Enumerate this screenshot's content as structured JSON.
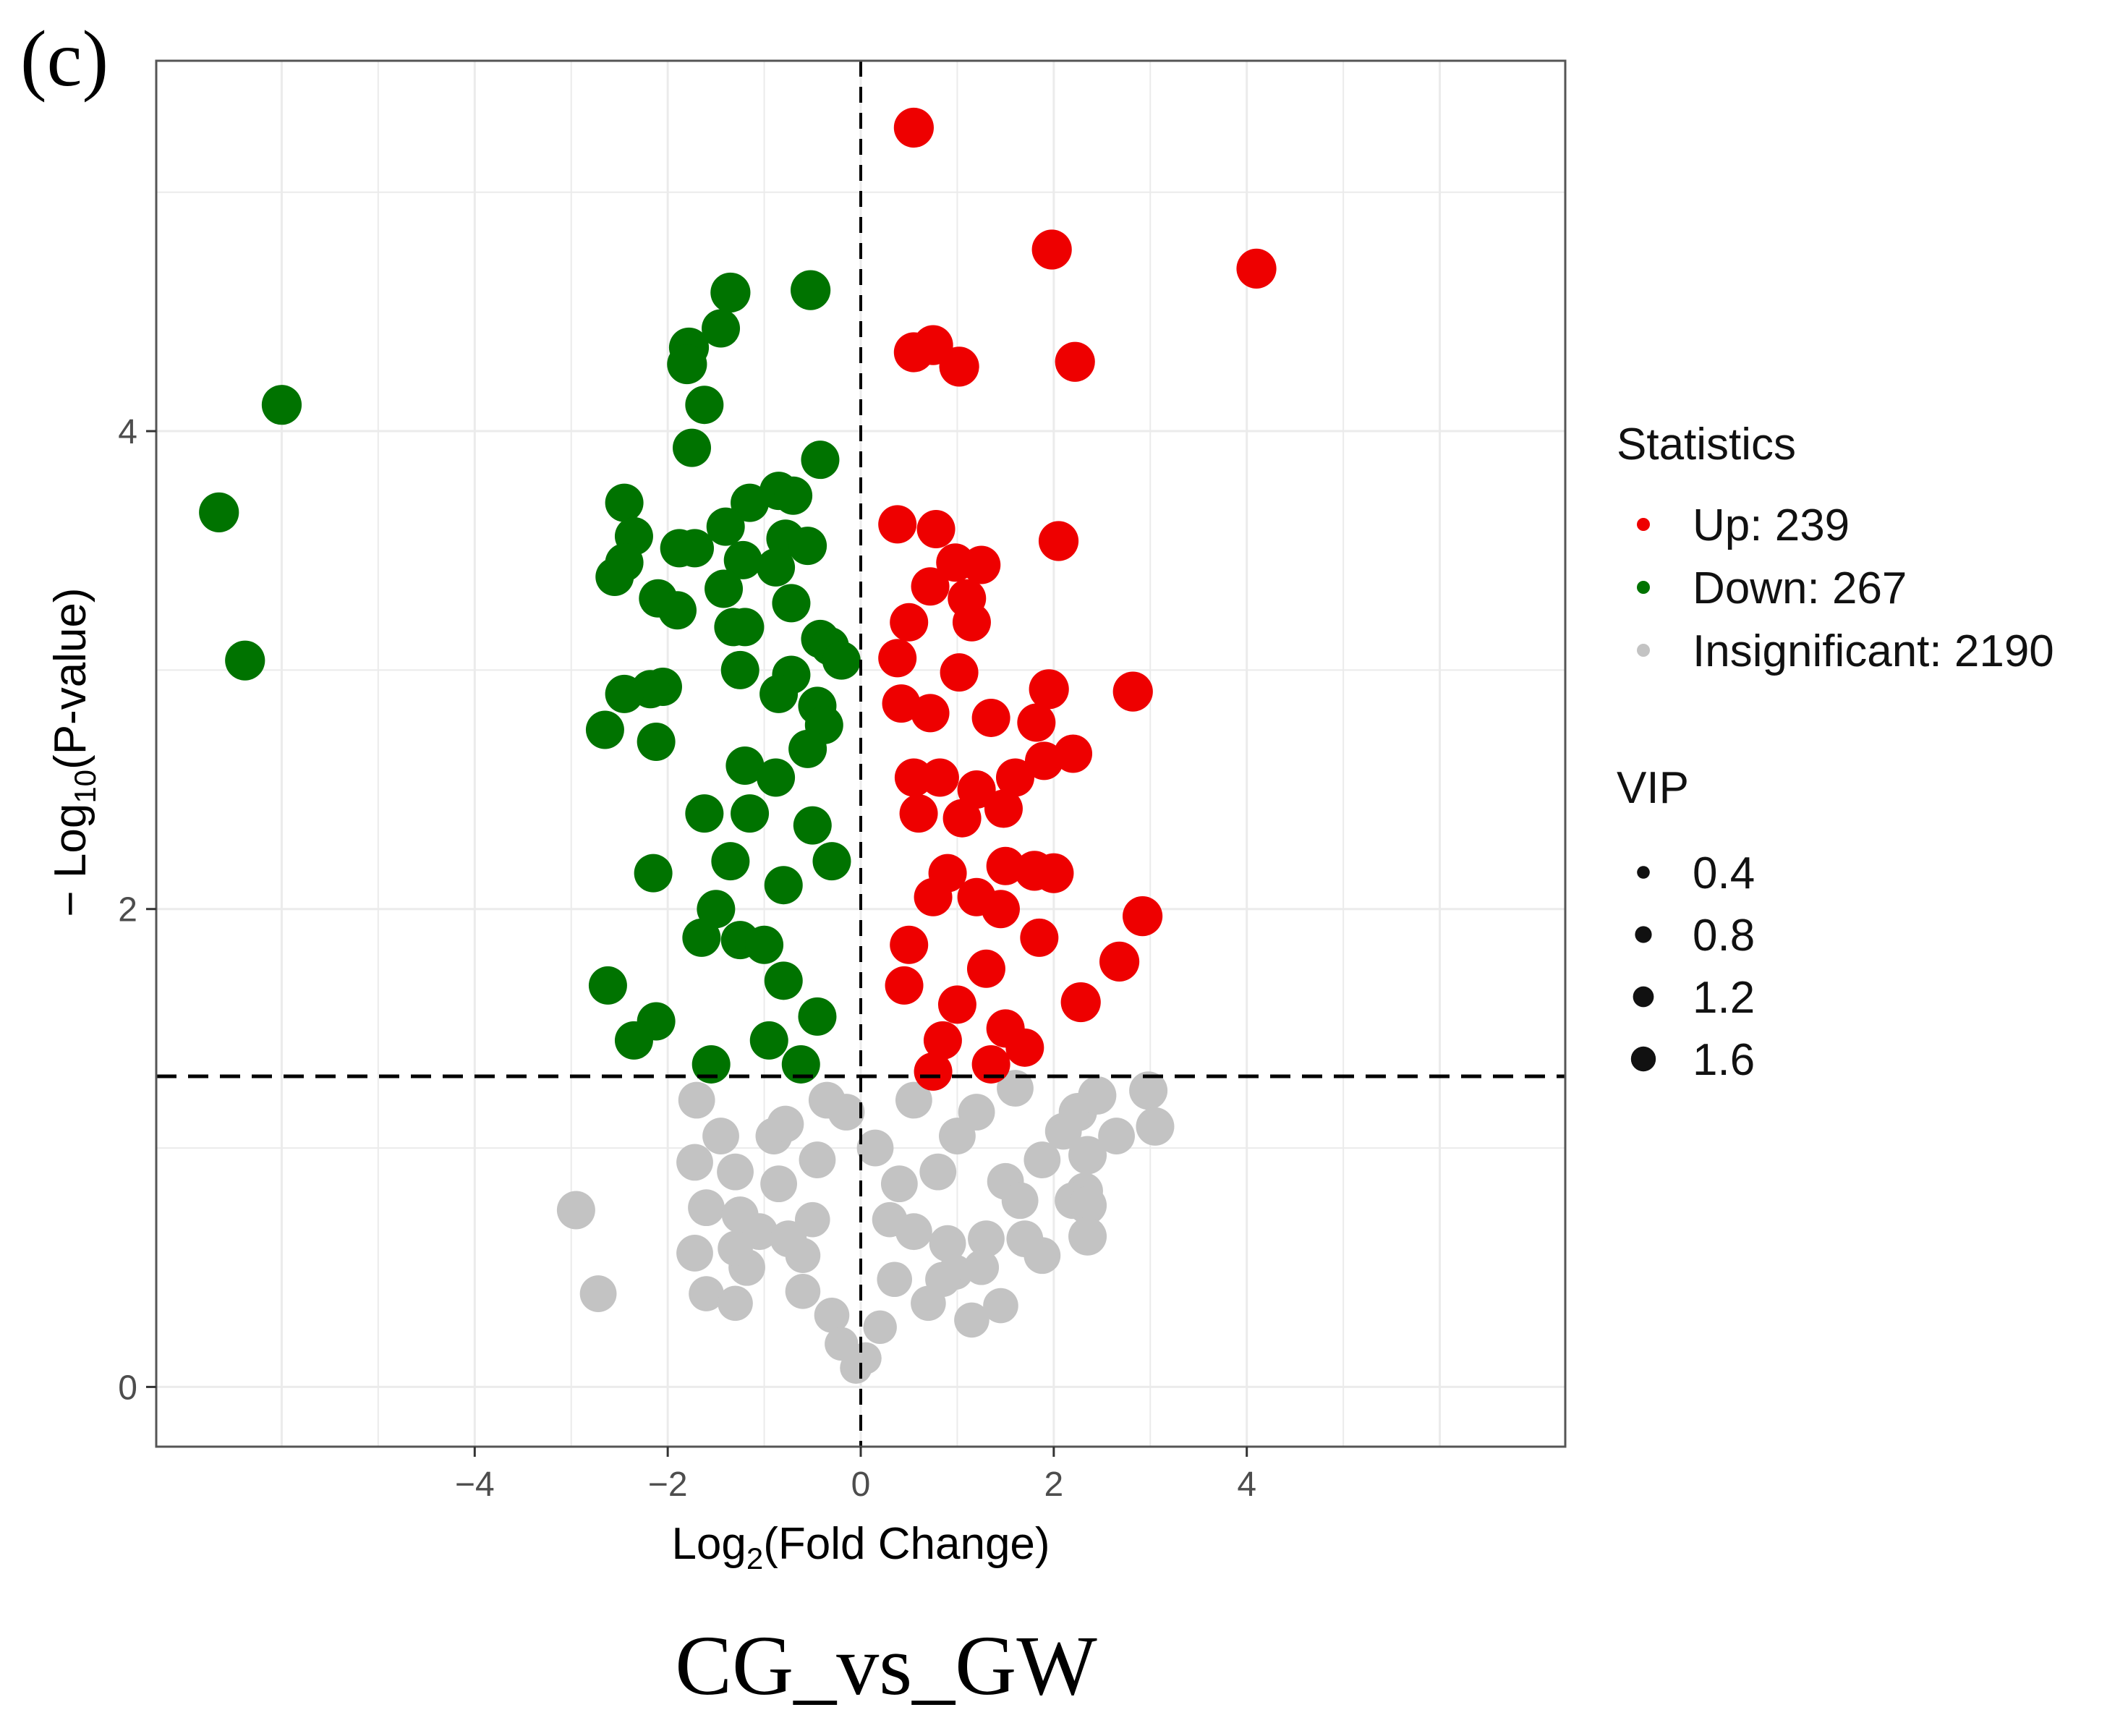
{
  "panel_label": "(c)",
  "chart_data": {
    "type": "scatter",
    "subtitle": "CG_vs_GW",
    "xlabel_pre": "Log",
    "xlabel_sub": "2",
    "xlabel_post": "(Fold Change)",
    "ylabel_pre": "− Log",
    "ylabel_sub": "10",
    "ylabel_post": "(P-value)",
    "xlim": [
      -7.3,
      7.3
    ],
    "ylim": [
      -0.25,
      5.55
    ],
    "x_ticks": [
      -4,
      -2,
      0,
      2,
      4
    ],
    "x_tick_labels": [
      "−4",
      "−2",
      "0",
      "2",
      "4"
    ],
    "y_ticks": [
      0,
      2,
      4
    ],
    "y_tick_labels": [
      "0",
      "2",
      "4"
    ],
    "grid": true,
    "vline_x": 0,
    "hline_y": 1.3,
    "colors": {
      "up": "#ee0000",
      "down": "#007300",
      "insignificant": "#c3c3c3"
    },
    "legend": {
      "statistics_title": "Statistics",
      "statistics": [
        {
          "key": "up",
          "label": "Up: 239"
        },
        {
          "key": "down",
          "label": "Down: 267"
        },
        {
          "key": "insignificant",
          "label": "Insignificant: 2190"
        }
      ],
      "vip_title": "VIP",
      "vip": [
        {
          "value": 0.4,
          "label": "0.4"
        },
        {
          "value": 0.8,
          "label": "0.8"
        },
        {
          "value": 1.2,
          "label": "1.2"
        },
        {
          "value": 1.6,
          "label": "1.6"
        }
      ]
    },
    "series": [
      {
        "name": "Up",
        "key": "up",
        "count": 239,
        "points": [
          [
            0.55,
            5.27,
            1.6
          ],
          [
            1.98,
            4.76,
            1.6
          ],
          [
            4.1,
            4.68,
            1.6
          ],
          [
            0.75,
            4.36,
            1.6
          ],
          [
            0.55,
            4.33,
            1.6
          ],
          [
            1.02,
            4.27,
            1.6
          ],
          [
            2.22,
            4.29,
            1.6
          ],
          [
            0.38,
            3.61,
            1.5
          ],
          [
            0.78,
            3.59,
            1.5
          ],
          [
            2.05,
            3.54,
            1.6
          ],
          [
            0.98,
            3.45,
            1.5
          ],
          [
            1.25,
            3.44,
            1.5
          ],
          [
            0.72,
            3.35,
            1.5
          ],
          [
            1.1,
            3.3,
            1.5
          ],
          [
            0.5,
            3.2,
            1.5
          ],
          [
            1.15,
            3.2,
            1.5
          ],
          [
            0.38,
            3.05,
            1.5
          ],
          [
            1.02,
            2.99,
            1.5
          ],
          [
            1.95,
            2.92,
            1.6
          ],
          [
            2.82,
            2.91,
            1.6
          ],
          [
            0.42,
            2.86,
            1.5
          ],
          [
            0.72,
            2.82,
            1.5
          ],
          [
            1.35,
            2.8,
            1.5
          ],
          [
            1.82,
            2.78,
            1.5
          ],
          [
            2.2,
            2.65,
            1.5
          ],
          [
            1.9,
            2.62,
            1.5
          ],
          [
            1.6,
            2.55,
            1.5
          ],
          [
            0.55,
            2.55,
            1.5
          ],
          [
            0.82,
            2.55,
            1.5
          ],
          [
            1.2,
            2.5,
            1.5
          ],
          [
            1.48,
            2.42,
            1.5
          ],
          [
            0.6,
            2.4,
            1.5
          ],
          [
            1.05,
            2.38,
            1.5
          ],
          [
            1.8,
            2.16,
            1.6
          ],
          [
            2.0,
            2.15,
            1.6
          ],
          [
            1.5,
            2.18,
            1.5
          ],
          [
            0.9,
            2.15,
            1.5
          ],
          [
            0.75,
            2.05,
            1.5
          ],
          [
            1.2,
            2.05,
            1.5
          ],
          [
            1.45,
            2.0,
            1.5
          ],
          [
            2.92,
            1.97,
            1.6
          ],
          [
            1.85,
            1.88,
            1.5
          ],
          [
            0.5,
            1.85,
            1.5
          ],
          [
            2.68,
            1.78,
            1.6
          ],
          [
            1.3,
            1.75,
            1.5
          ],
          [
            2.28,
            1.61,
            1.6
          ],
          [
            1.5,
            1.5,
            1.5
          ],
          [
            0.85,
            1.45,
            1.5
          ],
          [
            1.7,
            1.42,
            1.5
          ],
          [
            1.35,
            1.35,
            1.5
          ],
          [
            0.75,
            1.32,
            1.5
          ],
          [
            1.0,
            1.6,
            1.5
          ],
          [
            0.45,
            1.68,
            1.5
          ]
        ]
      },
      {
        "name": "Down",
        "key": "down",
        "count": 267,
        "points": [
          [
            -6.0,
            4.11,
            1.6
          ],
          [
            -6.65,
            3.66,
            1.6
          ],
          [
            -6.38,
            3.04,
            1.6
          ],
          [
            -1.35,
            4.58,
            1.6
          ],
          [
            -0.52,
            4.59,
            1.6
          ],
          [
            -1.45,
            4.43,
            1.5
          ],
          [
            -1.78,
            4.35,
            1.6
          ],
          [
            -1.8,
            4.28,
            1.6
          ],
          [
            -1.62,
            4.11,
            1.5
          ],
          [
            -1.75,
            3.93,
            1.5
          ],
          [
            -0.42,
            3.88,
            1.5
          ],
          [
            -0.85,
            3.75,
            1.5
          ],
          [
            -0.7,
            3.73,
            1.5
          ],
          [
            -1.15,
            3.7,
            1.5
          ],
          [
            -2.45,
            3.7,
            1.5
          ],
          [
            -1.4,
            3.6,
            1.5
          ],
          [
            -2.35,
            3.56,
            1.5
          ],
          [
            -0.78,
            3.55,
            1.5
          ],
          [
            -0.55,
            3.52,
            1.5
          ],
          [
            -1.88,
            3.51,
            1.5
          ],
          [
            -1.72,
            3.51,
            1.5
          ],
          [
            -1.22,
            3.46,
            1.5
          ],
          [
            -2.45,
            3.45,
            1.5
          ],
          [
            -0.88,
            3.43,
            1.5
          ],
          [
            -2.55,
            3.39,
            1.5
          ],
          [
            -1.42,
            3.34,
            1.5
          ],
          [
            -2.1,
            3.3,
            1.5
          ],
          [
            -0.72,
            3.28,
            1.5
          ],
          [
            -1.9,
            3.25,
            1.5
          ],
          [
            -1.32,
            3.18,
            1.5
          ],
          [
            -1.2,
            3.18,
            1.5
          ],
          [
            -0.42,
            3.13,
            1.5
          ],
          [
            -0.32,
            3.1,
            1.5
          ],
          [
            -0.2,
            3.04,
            1.5
          ],
          [
            -1.25,
            3.0,
            1.5
          ],
          [
            -0.72,
            2.98,
            1.5
          ],
          [
            -2.05,
            2.93,
            1.5
          ],
          [
            -2.18,
            2.92,
            1.5
          ],
          [
            -2.45,
            2.9,
            1.5
          ],
          [
            -0.85,
            2.9,
            1.5
          ],
          [
            -0.45,
            2.85,
            1.5
          ],
          [
            -2.65,
            2.75,
            1.5
          ],
          [
            -0.38,
            2.77,
            1.5
          ],
          [
            -2.12,
            2.7,
            1.5
          ],
          [
            -0.55,
            2.67,
            1.5
          ],
          [
            -1.2,
            2.6,
            1.5
          ],
          [
            -0.88,
            2.55,
            1.5
          ],
          [
            -1.62,
            2.4,
            1.5
          ],
          [
            -1.15,
            2.4,
            1.5
          ],
          [
            -0.5,
            2.35,
            1.5
          ],
          [
            -2.15,
            2.15,
            1.5
          ],
          [
            -1.35,
            2.2,
            1.5
          ],
          [
            -0.8,
            2.1,
            1.5
          ],
          [
            -1.65,
            1.88,
            1.5
          ],
          [
            -1.25,
            1.87,
            1.5
          ],
          [
            -1.0,
            1.85,
            1.5
          ],
          [
            -2.62,
            1.68,
            1.5
          ],
          [
            -0.8,
            1.7,
            1.5
          ],
          [
            -2.12,
            1.53,
            1.5
          ],
          [
            -0.95,
            1.45,
            1.5
          ],
          [
            -2.35,
            1.45,
            1.5
          ],
          [
            -1.55,
            1.35,
            1.5
          ],
          [
            -0.62,
            1.35,
            1.5
          ],
          [
            -0.45,
            1.55,
            1.5
          ],
          [
            -1.5,
            2.0,
            1.5
          ],
          [
            -0.3,
            2.2,
            1.5
          ]
        ]
      },
      {
        "name": "Insignificant",
        "key": "insignificant",
        "count": 2190,
        "points": [
          [
            -2.95,
            0.74,
            1.5
          ],
          [
            -2.72,
            0.39,
            1.4
          ],
          [
            -1.72,
            0.94,
            1.4
          ],
          [
            -1.6,
            0.75,
            1.4
          ],
          [
            -1.72,
            0.56,
            1.4
          ],
          [
            -1.6,
            0.39,
            1.3
          ],
          [
            -1.3,
            0.9,
            1.4
          ],
          [
            -1.25,
            0.72,
            1.4
          ],
          [
            -1.18,
            0.5,
            1.4
          ],
          [
            -1.05,
            0.65,
            1.4
          ],
          [
            -0.9,
            1.05,
            1.4
          ],
          [
            -0.85,
            0.85,
            1.4
          ],
          [
            -0.78,
            1.1,
            1.4
          ],
          [
            -0.75,
            0.62,
            1.4
          ],
          [
            -0.6,
            0.4,
            1.3
          ],
          [
            -0.5,
            0.7,
            1.3
          ],
          [
            -1.3,
            0.58,
            1.3
          ],
          [
            -0.45,
            0.95,
            1.4
          ],
          [
            -0.3,
            0.3,
            1.3
          ],
          [
            -0.2,
            0.18,
            1.2
          ],
          [
            -0.05,
            0.08,
            1.1
          ],
          [
            0.05,
            0.12,
            1.1
          ],
          [
            0.2,
            0.25,
            1.2
          ],
          [
            0.35,
            0.45,
            1.3
          ],
          [
            0.55,
            0.65,
            1.4
          ],
          [
            0.8,
            0.9,
            1.4
          ],
          [
            1.0,
            1.05,
            1.4
          ],
          [
            0.9,
            0.6,
            1.4
          ],
          [
            0.7,
            0.35,
            1.3
          ],
          [
            0.98,
            0.48,
            1.3
          ],
          [
            1.3,
            0.62,
            1.4
          ],
          [
            1.5,
            0.86,
            1.4
          ],
          [
            1.65,
            0.78,
            1.4
          ],
          [
            1.7,
            0.62,
            1.4
          ],
          [
            1.88,
            0.55,
            1.4
          ],
          [
            1.88,
            0.95,
            1.4
          ],
          [
            2.1,
            1.07,
            1.4
          ],
          [
            2.25,
            1.15,
            1.5
          ],
          [
            2.35,
            0.97,
            1.5
          ],
          [
            2.32,
            0.82,
            1.4
          ],
          [
            2.2,
            0.78,
            1.4
          ],
          [
            2.35,
            0.76,
            1.5
          ],
          [
            2.35,
            0.63,
            1.5
          ],
          [
            2.45,
            1.22,
            1.5
          ],
          [
            2.65,
            1.05,
            1.4
          ],
          [
            2.98,
            1.24,
            1.5
          ],
          [
            3.05,
            1.09,
            1.5
          ],
          [
            1.45,
            0.34,
            1.3
          ],
          [
            0.4,
            0.85,
            1.4
          ],
          [
            -0.35,
            1.2,
            1.4
          ],
          [
            0.55,
            1.2,
            1.4
          ],
          [
            1.2,
            1.15,
            1.4
          ],
          [
            1.6,
            1.25,
            1.4
          ],
          [
            -1.7,
            1.2,
            1.4
          ],
          [
            -1.45,
            1.05,
            1.4
          ],
          [
            -0.15,
            1.15,
            1.4
          ],
          [
            0.15,
            1.0,
            1.4
          ],
          [
            0.3,
            0.7,
            1.3
          ],
          [
            -0.6,
            0.55,
            1.3
          ],
          [
            1.15,
            0.28,
            1.3
          ],
          [
            -1.3,
            0.35,
            1.3
          ],
          [
            0.85,
            0.45,
            1.3
          ],
          [
            1.25,
            0.5,
            1.3
          ]
        ]
      }
    ]
  }
}
